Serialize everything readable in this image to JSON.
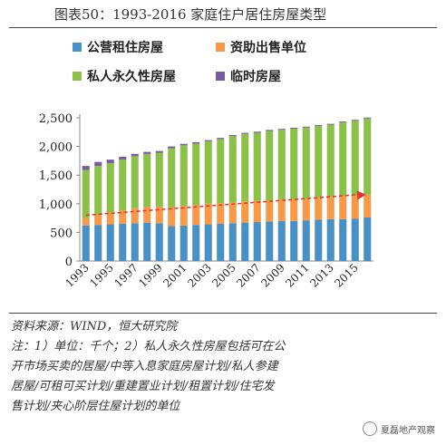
{
  "title": "图表50：1993-2016 家庭住户居住房屋类型",
  "legend": [
    {
      "label": "公营租住房屋",
      "color": "#4a90c2"
    },
    {
      "label": "资助出售单位",
      "color": "#f59a4a"
    },
    {
      "label": "私人永久性房屋",
      "color": "#8cc04a"
    },
    {
      "label": "临时房屋",
      "color": "#7a5aa0"
    }
  ],
  "chart_data": {
    "type": "bar",
    "stacked": true,
    "categories": [
      "1993",
      "1994",
      "1995",
      "1996",
      "1997",
      "1998",
      "1999",
      "2000",
      "2001",
      "2002",
      "2003",
      "2004",
      "2005",
      "2006",
      "2007",
      "2008",
      "2009",
      "2010",
      "2011",
      "2012",
      "2013",
      "2014",
      "2015",
      "2016"
    ],
    "tick_labels": [
      "1993",
      "1995",
      "1997",
      "1999",
      "2001",
      "2003",
      "2005",
      "2007",
      "2009",
      "2011",
      "2013",
      "2015"
    ],
    "series": [
      {
        "name": "公营租住房屋",
        "values": [
          620,
          630,
          640,
          650,
          660,
          670,
          660,
          610,
          620,
          630,
          640,
          650,
          660,
          670,
          680,
          690,
          700,
          700,
          710,
          720,
          730,
          730,
          740,
          760
        ],
        "color": "#4a90c2"
      },
      {
        "name": "资助出售单位",
        "values": [
          130,
          170,
          200,
          230,
          260,
          280,
          290,
          330,
          340,
          350,
          360,
          360,
          360,
          370,
          370,
          370,
          370,
          380,
          380,
          390,
          390,
          400,
          400,
          400
        ],
        "color": "#f59a4a"
      },
      {
        "name": "私人永久性房屋",
        "values": [
          840,
          860,
          870,
          890,
          910,
          920,
          940,
          1030,
          1060,
          1070,
          1090,
          1120,
          1160,
          1180,
          1190,
          1210,
          1220,
          1230,
          1240,
          1250,
          1260,
          1290,
          1310,
          1330
        ],
        "color": "#8cc04a"
      },
      {
        "name": "临时房屋",
        "values": [
          70,
          70,
          60,
          50,
          40,
          35,
          30,
          30,
          25,
          25,
          20,
          20,
          20,
          18,
          18,
          18,
          17,
          17,
          16,
          16,
          15,
          15,
          15,
          15
        ],
        "color": "#7a5aa0"
      }
    ],
    "trend": {
      "start": 800,
      "end": 1160,
      "color": "#e8332a"
    },
    "ylim": [
      0,
      2500
    ],
    "yticks": [
      0,
      500,
      1000,
      1500,
      2000,
      2500
    ]
  },
  "notes": [
    "资料来源：WIND，恒大研究院",
    "注：1）单位：千个；2）私人永久性房屋包括可在公",
    "开市场买卖的居屋/中等入息家庭房屋计划/私人参建",
    "居屋/可租可买计划/重建置业计划/租置计划/住宅发",
    "售计划/夹心阶层住屋计划的单位"
  ],
  "watermark": "夏磊地产观察"
}
